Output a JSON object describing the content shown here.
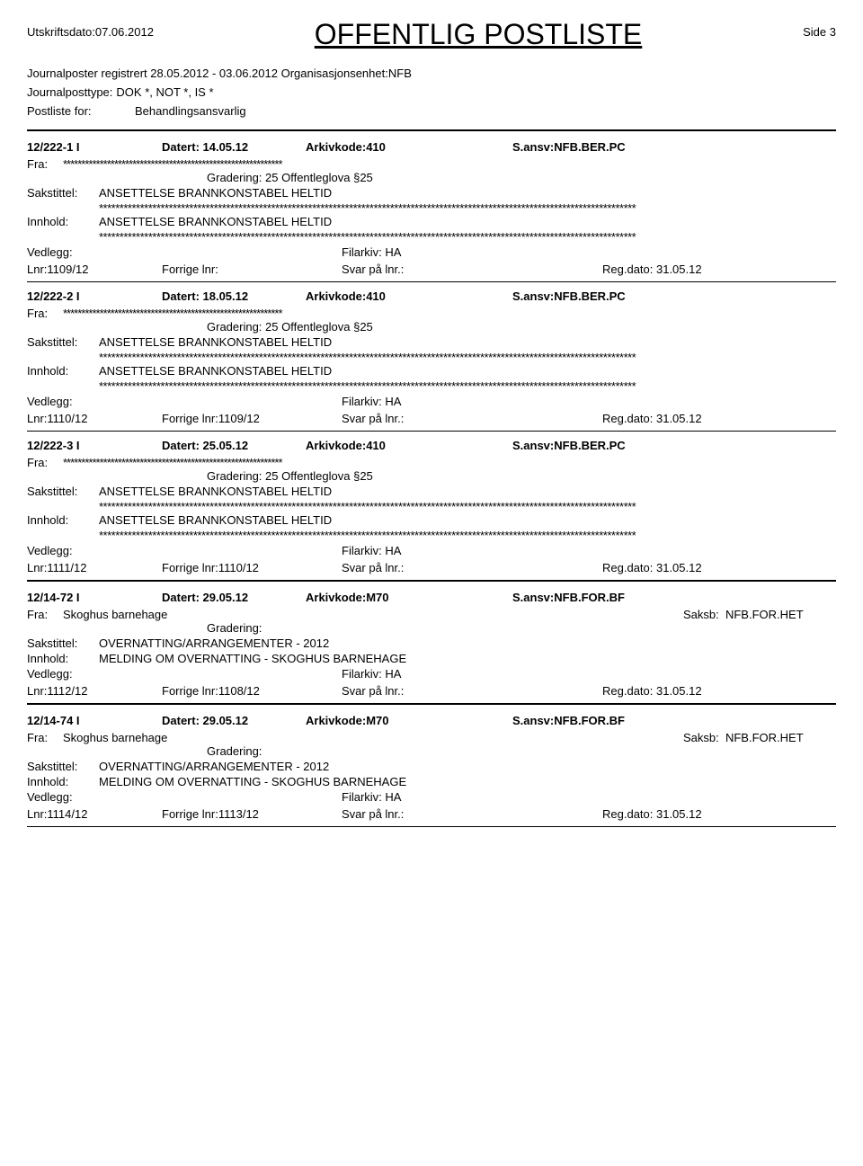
{
  "header": {
    "print_date_label": "Utskriftsdato:",
    "print_date": "07.06.2012",
    "title": "OFFENTLIG POSTLISTE",
    "page_label": "Side",
    "page_number": "3"
  },
  "journal_info": {
    "registered_label": "Journalposter registrert",
    "date_range": "28.05.2012 - 03.06.2012",
    "org_label": "Organisasjonsenhet:",
    "org_value": "NFB",
    "posttype_label": "Journalposttype:",
    "posttype_value": "DOK *, NOT *, IS *",
    "postliste_label": "Postliste for:",
    "postliste_value": "Behandlingsansvarlig"
  },
  "common": {
    "datert_label": "Datert:",
    "arkivkode_label": "Arkivkode:",
    "sansv_label": "S.ansv:",
    "fra_label": "Fra:",
    "gradering_label": "Gradering:",
    "gradering_25": "25 Offentleglova §25",
    "sakstittel_label": "Sakstittel:",
    "innhold_label": "Innhold:",
    "vedlegg_label": "Vedlegg:",
    "filarkiv_label": "Filarkiv:",
    "filarkiv_value": "HA",
    "lnr_label": "Lnr:",
    "forrige_label": "Forrige lnr:",
    "svar_label": "Svar på lnr.:",
    "regdato_label": "Reg.dato:",
    "saksb_label": "Saksb:",
    "stars_short": "************************************************************",
    "stars_long": "***********************************************************************************************************************************"
  },
  "entries": [
    {
      "id": "12/222-1 I",
      "datert": "14.05.12",
      "arkivkode": "410",
      "sansv": "NFB.BER.PC",
      "fra_stars": true,
      "gradering": "25 Offentleglova §25",
      "sakstittel": "ANSETTELSE BRANNKONSTABEL HELTID",
      "innhold": "ANSETTELSE BRANNKONSTABEL HELTID",
      "lnr": "1109/12",
      "forrige": "",
      "regdato": "31.05.12"
    },
    {
      "id": "12/222-2 I",
      "datert": "18.05.12",
      "arkivkode": "410",
      "sansv": "NFB.BER.PC",
      "fra_stars": true,
      "gradering": "25 Offentleglova §25",
      "sakstittel": "ANSETTELSE BRANNKONSTABEL HELTID",
      "innhold": "ANSETTELSE BRANNKONSTABEL HELTID",
      "lnr": "1110/12",
      "forrige": "1109/12",
      "regdato": "31.05.12"
    },
    {
      "id": "12/222-3 I",
      "datert": "25.05.12",
      "arkivkode": "410",
      "sansv": "NFB.BER.PC",
      "fra_stars": true,
      "gradering": "25 Offentleglova §25",
      "sakstittel": "ANSETTELSE BRANNKONSTABEL HELTID",
      "innhold": "ANSETTELSE BRANNKONSTABEL HELTID",
      "lnr": "1111/12",
      "forrige": "1110/12",
      "regdato": "31.05.12"
    },
    {
      "id": "12/14-72 I",
      "datert": "29.05.12",
      "arkivkode": "M70",
      "sansv": "NFB.FOR.BF",
      "fra_value": "Skoghus barnehage",
      "saksb": "NFB.FOR.HET",
      "gradering": "",
      "sakstittel": "OVERNATTING/ARRANGEMENTER - 2012",
      "innhold": "MELDING OM OVERNATTING - SKOGHUS BARNEHAGE",
      "lnr": "1112/12",
      "forrige": "1108/12",
      "regdato": "31.05.12"
    },
    {
      "id": "12/14-74 I",
      "datert": "29.05.12",
      "arkivkode": "M70",
      "sansv": "NFB.FOR.BF",
      "fra_value": "Skoghus barnehage",
      "saksb": "NFB.FOR.HET",
      "gradering": "",
      "sakstittel": "OVERNATTING/ARRANGEMENTER - 2012",
      "innhold": "MELDING OM OVERNATTING - SKOGHUS BARNEHAGE",
      "lnr": "1114/12",
      "forrige": "1113/12",
      "regdato": "31.05.12"
    }
  ]
}
